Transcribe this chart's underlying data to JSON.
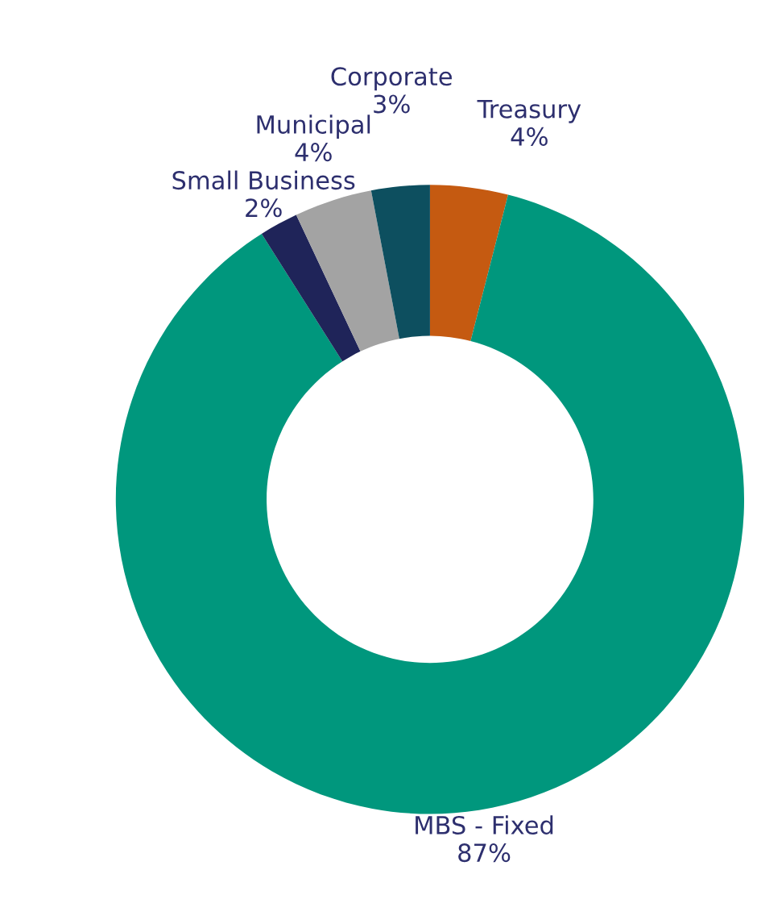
{
  "chart_data": {
    "type": "donut",
    "categories": [
      "Treasury",
      "MBS - Fixed",
      "Small Business",
      "Municipal",
      "Corporate"
    ],
    "values": [
      4,
      87,
      2,
      4,
      3
    ],
    "colors": [
      "#c55a11",
      "#00977d",
      "#1f2459",
      "#a3a3a3",
      "#0d4f5f"
    ],
    "value_labels": [
      "4%",
      "87%",
      "2%",
      "4%",
      "3%"
    ],
    "legend": false
  }
}
